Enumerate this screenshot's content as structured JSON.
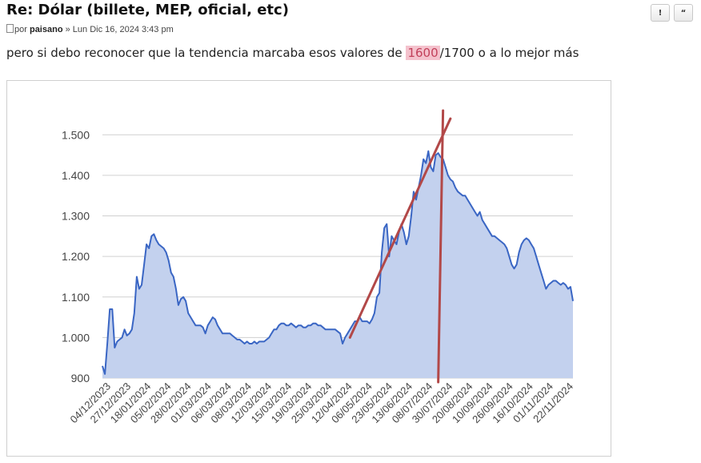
{
  "post": {
    "title": "Re: Dólar (billete, MEP, oficial, etc)",
    "meta_prefix": "por",
    "author": "paisano",
    "date": "» Lun Dic 16, 2024 3:43 pm",
    "body_before": "pero si debo reconocer que la tendencia marcaba esos valores de ",
    "body_highlight": "1600",
    "body_after": "/1700 o a lo mejor más",
    "actions": [
      {
        "name": "report",
        "label": "!"
      },
      {
        "name": "quote",
        "label": "“"
      }
    ]
  },
  "chart_data": {
    "type": "area",
    "title": "",
    "xlabel": "",
    "ylabel": "",
    "ylim": [
      900,
      1550
    ],
    "y_ticks": [
      900,
      1000,
      1100,
      1200,
      1300,
      1400,
      1500
    ],
    "y_tick_labels": [
      "900",
      "1.000",
      "1.100",
      "1.200",
      "1.300",
      "1.400",
      "1.500"
    ],
    "x_tick_labels": [
      "04/12/2023",
      "27/12/2023",
      "18/01/2024",
      "05/02/2024",
      "28/02/2024",
      "01/03/2024",
      "06/03/2024",
      "08/03/2024",
      "12/03/2024",
      "15/03/2024",
      "19/03/2024",
      "25/03/2024",
      "12/04/2024",
      "06/05/2024",
      "23/05/2024",
      "13/06/2024",
      "08/07/2024",
      "30/07/2024",
      "20/08/2024",
      "10/09/2024",
      "26/09/2024",
      "16/10/2024",
      "01/11/2024",
      "22/11/2024"
    ],
    "grid": true,
    "colors": {
      "line": "#3a66c4",
      "fill": "#c3d1ee",
      "annotation": "#b24848"
    },
    "series": [
      {
        "values": [
          930,
          910,
          985,
          1070,
          1070,
          975,
          990,
          995,
          1000,
          1020,
          1005,
          1010,
          1020,
          1060,
          1150,
          1120,
          1130,
          1180,
          1230,
          1220,
          1250,
          1255,
          1240,
          1230,
          1225,
          1220,
          1210,
          1190,
          1160,
          1150,
          1120,
          1080,
          1095,
          1100,
          1090,
          1060,
          1050,
          1040,
          1030,
          1030,
          1030,
          1025,
          1010,
          1030,
          1040,
          1050,
          1045,
          1030,
          1020,
          1010,
          1010,
          1010,
          1010,
          1005,
          1000,
          995,
          995,
          990,
          985,
          990,
          985,
          985,
          990,
          985,
          990,
          990,
          990,
          995,
          1000,
          1010,
          1020,
          1020,
          1030,
          1035,
          1035,
          1030,
          1030,
          1035,
          1030,
          1025,
          1030,
          1030,
          1025,
          1025,
          1030,
          1030,
          1035,
          1035,
          1030,
          1030,
          1025,
          1020,
          1020,
          1020,
          1020,
          1020,
          1015,
          1010,
          985,
          1000,
          1010,
          1020,
          1030,
          1040,
          1040,
          1050,
          1040,
          1040,
          1040,
          1035,
          1045,
          1060,
          1100,
          1110,
          1210,
          1270,
          1280,
          1200,
          1250,
          1240,
          1230,
          1260,
          1280,
          1260,
          1230,
          1250,
          1300,
          1360,
          1340,
          1370,
          1400,
          1440,
          1430,
          1460,
          1420,
          1410,
          1450,
          1455,
          1445,
          1440,
          1420,
          1400,
          1390,
          1385,
          1370,
          1360,
          1355,
          1350,
          1350,
          1340,
          1330,
          1320,
          1310,
          1300,
          1310,
          1290,
          1280,
          1270,
          1260,
          1250,
          1250,
          1245,
          1240,
          1235,
          1230,
          1220,
          1200,
          1180,
          1170,
          1180,
          1210,
          1230,
          1240,
          1245,
          1240,
          1230,
          1220,
          1200,
          1180,
          1160,
          1140,
          1120,
          1130,
          1135,
          1140,
          1140,
          1135,
          1130,
          1135,
          1130,
          1120,
          1125,
          1090
        ]
      }
    ],
    "annotations": [
      {
        "type": "trend-line",
        "from": {
          "x_index": 101,
          "y": 1000
        },
        "to": {
          "x_index": 142,
          "y": 1540
        }
      },
      {
        "type": "vertical-line",
        "x_index": 138,
        "y_top": 1560,
        "y_bottom": 890
      }
    ]
  }
}
